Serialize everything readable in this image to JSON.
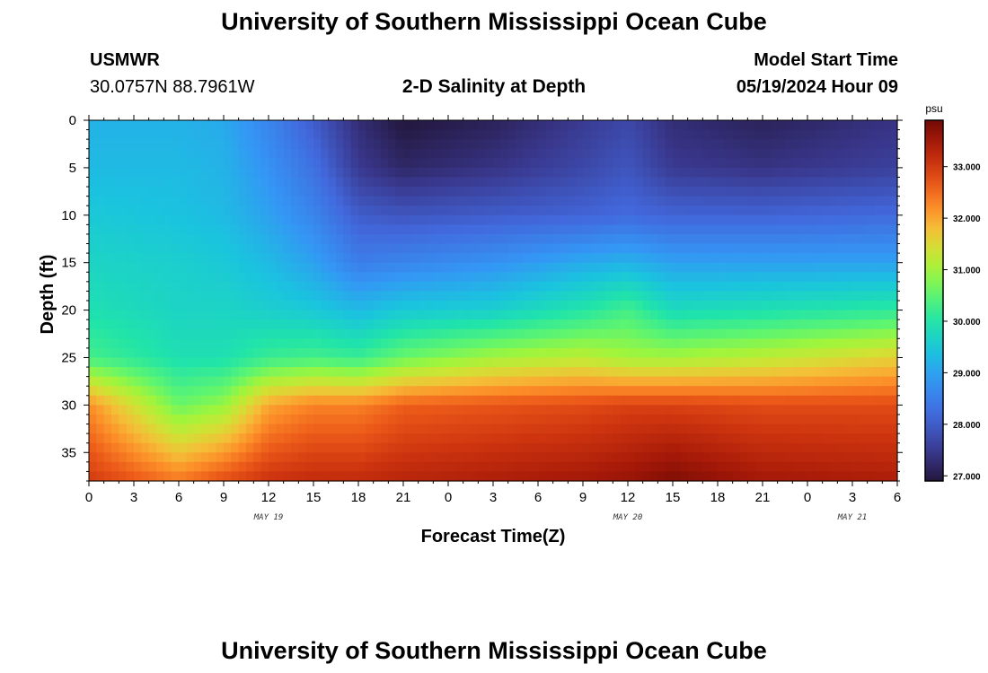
{
  "header": {
    "title_top": "University of Southern Mississippi Ocean Cube",
    "title_bottom": "University of Southern Mississippi Ocean Cube",
    "station_id": "USMWR",
    "station_coords": "30.0757N  88.7961W",
    "plot_title": "2-D Salinity at Depth",
    "model_start_label": "Model Start Time",
    "model_start_value": "05/19/2024 Hour 09"
  },
  "chart_data": {
    "type": "heatmap",
    "title": "2-D Salinity at Depth",
    "xlabel": "Forecast Time(Z)",
    "ylabel": "Depth (ft)",
    "x_range_hours": [
      0,
      54
    ],
    "y_range": [
      0,
      38
    ],
    "x_tick_labels": [
      "0",
      "3",
      "6",
      "9",
      "12",
      "15",
      "18",
      "21",
      "0",
      "3",
      "6",
      "9",
      "12",
      "15",
      "18",
      "21",
      "0",
      "3",
      "6"
    ],
    "y_tick_labels": [
      "0",
      "5",
      "10",
      "15",
      "20",
      "25",
      "30",
      "35"
    ],
    "y_tick_values": [
      0,
      5,
      10,
      15,
      20,
      25,
      30,
      35
    ],
    "date_labels": [
      {
        "text": "MAY 19",
        "hour": 12
      },
      {
        "text": "MAY 20",
        "hour": 36
      },
      {
        "text": "MAY 21",
        "hour": 51
      }
    ],
    "colorbar": {
      "unit": "psu",
      "min": 26.9,
      "max": 33.9,
      "tick_values": [
        27,
        28,
        29,
        30,
        31,
        32,
        33
      ],
      "tick_labels": [
        "27.000",
        "28.000",
        "29.000",
        "30.000",
        "31.000",
        "32.000",
        "33.000"
      ]
    },
    "salinity_profiles": {
      "depths_ft": [
        0,
        5,
        10,
        15,
        20,
        25,
        30,
        38
      ],
      "columns": [
        {
          "hour": 0,
          "psu": [
            29.2,
            29.3,
            29.5,
            29.7,
            29.9,
            30.3,
            32.2,
            33.0
          ]
        },
        {
          "hour": 6,
          "psu": [
            29.2,
            29.3,
            29.4,
            29.6,
            29.7,
            29.9,
            30.6,
            32.4
          ]
        },
        {
          "hour": 9,
          "psu": [
            29.1,
            29.2,
            29.3,
            29.5,
            29.7,
            29.9,
            30.9,
            32.8
          ]
        },
        {
          "hour": 12,
          "psu": [
            28.6,
            28.8,
            29.0,
            29.3,
            29.6,
            30.2,
            32.0,
            33.1
          ]
        },
        {
          "hour": 15,
          "psu": [
            28.0,
            28.3,
            28.6,
            29.0,
            29.5,
            30.3,
            32.3,
            33.2
          ]
        },
        {
          "hour": 18,
          "psu": [
            27.3,
            27.5,
            28.0,
            28.5,
            29.3,
            30.2,
            32.3,
            33.2
          ]
        },
        {
          "hour": 21,
          "psu": [
            26.9,
            27.2,
            27.9,
            28.6,
            29.5,
            30.6,
            32.6,
            33.3
          ]
        },
        {
          "hour": 27,
          "psu": [
            27.1,
            27.4,
            28.0,
            28.8,
            29.6,
            31.0,
            32.7,
            33.4
          ]
        },
        {
          "hour": 33,
          "psu": [
            27.5,
            27.7,
            28.1,
            29.1,
            30.0,
            31.2,
            32.8,
            33.5
          ]
        },
        {
          "hour": 36,
          "psu": [
            27.7,
            27.9,
            28.2,
            29.2,
            30.3,
            31.0,
            32.9,
            33.6
          ]
        },
        {
          "hour": 39,
          "psu": [
            27.3,
            27.5,
            28.1,
            29.0,
            29.8,
            31.0,
            32.9,
            33.8
          ]
        },
        {
          "hour": 45,
          "psu": [
            27.1,
            27.4,
            28.1,
            29.0,
            29.9,
            31.2,
            32.8,
            33.5
          ]
        },
        {
          "hour": 54,
          "psu": [
            27.4,
            27.6,
            28.2,
            29.0,
            30.1,
            31.6,
            32.8,
            33.4
          ]
        }
      ]
    }
  }
}
